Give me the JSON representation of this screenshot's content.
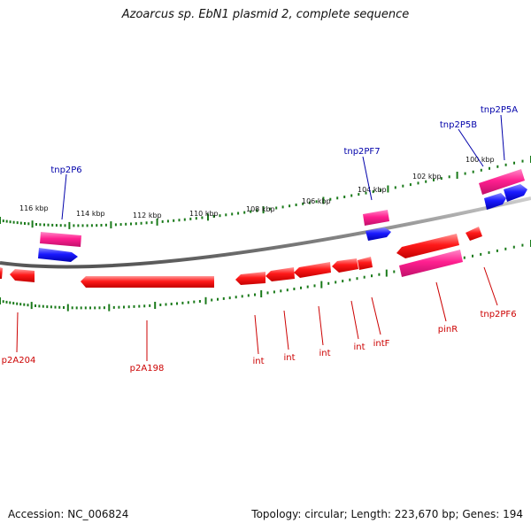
{
  "title": "Azoarcus sp. EbN1 plasmid 2, complete sequence",
  "accession": "Accession: NC_006824",
  "topology": "Topology: circular; Length: 223,670 bp; Genes: 194",
  "colors": {
    "backbone": "#888888",
    "tick": "#1a7a1a",
    "gene_red": "#ee1111",
    "gene_pink": "#ee2288",
    "gene_blue": "#1111dd",
    "label_red": "#cc0000",
    "label_blue": "#0000aa"
  },
  "kbp_labels": [
    "116 kbp",
    "114 kbp",
    "112 kbp",
    "110 kbp",
    "108 kbp",
    "106 kbp",
    "104 kbp",
    "102 kbp",
    "100 kbp"
  ],
  "top_genes": [
    {
      "label": "tnp2P6",
      "color": "blue"
    },
    {
      "label": "tnp2PF7",
      "color": "blue"
    },
    {
      "label": "tnp2P5B",
      "color": "blue"
    },
    {
      "label": "tnp2P5A",
      "color": "blue"
    }
  ],
  "bottom_genes": [
    {
      "label": "p2A204",
      "color": "red"
    },
    {
      "label": "p2A198",
      "color": "red"
    },
    {
      "label": "int",
      "color": "red"
    },
    {
      "label": "int",
      "color": "red"
    },
    {
      "label": "int",
      "color": "red"
    },
    {
      "label": "int",
      "color": "red"
    },
    {
      "label": "intF",
      "color": "red"
    },
    {
      "label": "pinR",
      "color": "red"
    },
    {
      "label": "tnp2PF6",
      "color": "red"
    }
  ]
}
